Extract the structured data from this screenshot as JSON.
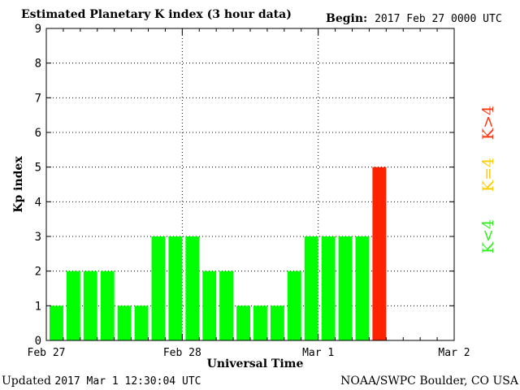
{
  "header": {
    "title": "Estimated Planetary K index (3 hour data)",
    "begin_label": "Begin:",
    "begin_value": "2017 Feb 27 0000 UTC"
  },
  "footer": {
    "updated_label": "Updated",
    "updated_value": "2017 Mar  1 12:30:04 UTC",
    "credit": "NOAA/SWPC Boulder, CO USA"
  },
  "legend": [
    {
      "label": "K>4",
      "color": "#ff3311"
    },
    {
      "label": "K=4",
      "color": "#ffcc00"
    },
    {
      "label": "K<4",
      "color": "#33ee22"
    }
  ],
  "colors": {
    "below4": "#00ff00",
    "equal4": "#ffff00",
    "above4": "#ff2200"
  },
  "chart_data": {
    "type": "bar",
    "title": "Estimated Planetary K index (3 hour data)",
    "xlabel": "Universal Time",
    "ylabel": "Kp index",
    "ylim": [
      0,
      9
    ],
    "yticks": [
      "0",
      "1",
      "2",
      "3",
      "4",
      "5",
      "6",
      "7",
      "8",
      "9"
    ],
    "xticks": [
      "Feb 27",
      "Feb 28",
      "Mar 1",
      "Mar 2"
    ],
    "interval_hours": 3,
    "values": [
      1,
      2,
      2,
      2,
      1,
      1,
      3,
      3,
      3,
      2,
      2,
      1,
      1,
      1,
      2,
      3,
      3,
      3,
      3,
      5
    ],
    "grid": true
  }
}
